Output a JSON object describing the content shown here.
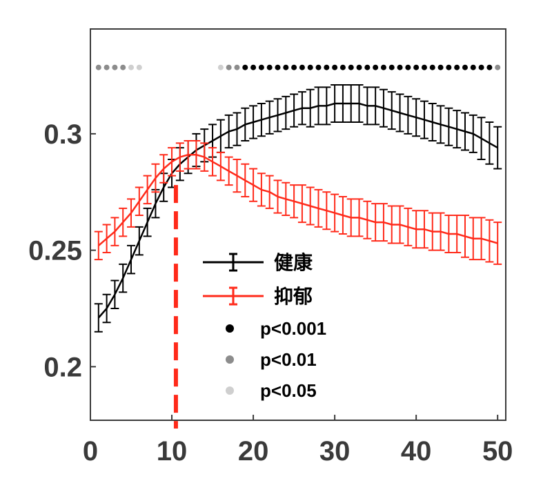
{
  "chart_data": {
    "type": "line",
    "title": "",
    "xlabel": "",
    "ylabel": "",
    "xlim": [
      0,
      51
    ],
    "ylim": [
      0.177,
      0.345
    ],
    "x_ticks": [
      {
        "value": 0,
        "label": "0"
      },
      {
        "value": 10,
        "label": "10"
      },
      {
        "value": 20,
        "label": "20"
      },
      {
        "value": 30,
        "label": "30"
      },
      {
        "value": 40,
        "label": "40"
      },
      {
        "value": 50,
        "label": "50"
      }
    ],
    "y_ticks": [
      {
        "value": 0.2,
        "label": "0.2"
      },
      {
        "value": 0.25,
        "label": "0.25"
      },
      {
        "value": 0.3,
        "label": "0.3"
      }
    ],
    "series": [
      {
        "name": "健康",
        "color": "#000000",
        "x": [
          1,
          2,
          3,
          4,
          5,
          6,
          7,
          8,
          9,
          10,
          11,
          12,
          13,
          14,
          15,
          16,
          17,
          18,
          19,
          20,
          21,
          22,
          23,
          24,
          25,
          26,
          27,
          28,
          29,
          30,
          31,
          32,
          33,
          34,
          35,
          36,
          37,
          38,
          39,
          40,
          41,
          42,
          43,
          44,
          45,
          46,
          47,
          48,
          49,
          50
        ],
        "values": [
          0.221,
          0.225,
          0.231,
          0.238,
          0.246,
          0.254,
          0.262,
          0.27,
          0.277,
          0.283,
          0.287,
          0.29,
          0.293,
          0.295,
          0.297,
          0.299,
          0.301,
          0.302,
          0.304,
          0.305,
          0.306,
          0.307,
          0.308,
          0.309,
          0.31,
          0.311,
          0.311,
          0.312,
          0.312,
          0.313,
          0.313,
          0.313,
          0.313,
          0.312,
          0.312,
          0.311,
          0.31,
          0.309,
          0.308,
          0.307,
          0.306,
          0.305,
          0.304,
          0.303,
          0.302,
          0.301,
          0.3,
          0.298,
          0.296,
          0.294
        ],
        "errors": [
          0.006,
          0.006,
          0.006,
          0.006,
          0.006,
          0.006,
          0.006,
          0.006,
          0.006,
          0.006,
          0.007,
          0.007,
          0.007,
          0.007,
          0.007,
          0.007,
          0.007,
          0.007,
          0.007,
          0.007,
          0.007,
          0.007,
          0.007,
          0.007,
          0.007,
          0.007,
          0.008,
          0.008,
          0.008,
          0.008,
          0.008,
          0.008,
          0.008,
          0.008,
          0.008,
          0.008,
          0.008,
          0.008,
          0.008,
          0.008,
          0.008,
          0.008,
          0.008,
          0.008,
          0.008,
          0.008,
          0.008,
          0.009,
          0.009,
          0.009
        ]
      },
      {
        "name": "抑郁",
        "color": "#ff2a1a",
        "x": [
          1,
          2,
          3,
          4,
          5,
          6,
          7,
          8,
          9,
          10,
          11,
          12,
          13,
          14,
          15,
          16,
          17,
          18,
          19,
          20,
          21,
          22,
          23,
          24,
          25,
          26,
          27,
          28,
          29,
          30,
          31,
          32,
          33,
          34,
          35,
          36,
          37,
          38,
          39,
          40,
          41,
          42,
          43,
          44,
          45,
          46,
          47,
          48,
          49,
          50
        ],
        "values": [
          0.252,
          0.255,
          0.258,
          0.262,
          0.266,
          0.271,
          0.276,
          0.281,
          0.285,
          0.288,
          0.29,
          0.291,
          0.291,
          0.29,
          0.288,
          0.286,
          0.284,
          0.282,
          0.28,
          0.278,
          0.276,
          0.275,
          0.273,
          0.272,
          0.271,
          0.27,
          0.269,
          0.268,
          0.267,
          0.266,
          0.265,
          0.264,
          0.264,
          0.263,
          0.262,
          0.262,
          0.261,
          0.261,
          0.26,
          0.259,
          0.259,
          0.258,
          0.258,
          0.257,
          0.257,
          0.256,
          0.255,
          0.255,
          0.254,
          0.253
        ],
        "errors": [
          0.006,
          0.006,
          0.006,
          0.006,
          0.006,
          0.006,
          0.006,
          0.006,
          0.006,
          0.006,
          0.006,
          0.006,
          0.006,
          0.006,
          0.006,
          0.006,
          0.006,
          0.007,
          0.007,
          0.007,
          0.007,
          0.007,
          0.007,
          0.007,
          0.007,
          0.008,
          0.008,
          0.008,
          0.008,
          0.008,
          0.008,
          0.008,
          0.008,
          0.008,
          0.008,
          0.008,
          0.008,
          0.008,
          0.008,
          0.008,
          0.008,
          0.008,
          0.008,
          0.008,
          0.008,
          0.009,
          0.009,
          0.009,
          0.009,
          0.009
        ]
      }
    ],
    "significance": {
      "y_value": 0.3285,
      "points": [
        {
          "x": 1,
          "level": "p<0.01"
        },
        {
          "x": 2,
          "level": "p<0.01"
        },
        {
          "x": 3,
          "level": "p<0.01"
        },
        {
          "x": 4,
          "level": "p<0.01"
        },
        {
          "x": 5,
          "level": "p<0.05"
        },
        {
          "x": 6,
          "level": "p<0.05"
        },
        {
          "x": 16,
          "level": "p<0.05"
        },
        {
          "x": 17,
          "level": "p<0.01"
        },
        {
          "x": 18,
          "level": "p<0.01"
        },
        {
          "x": 19,
          "level": "p<0.001"
        },
        {
          "x": 20,
          "level": "p<0.001"
        },
        {
          "x": 21,
          "level": "p<0.001"
        },
        {
          "x": 22,
          "level": "p<0.001"
        },
        {
          "x": 23,
          "level": "p<0.001"
        },
        {
          "x": 24,
          "level": "p<0.001"
        },
        {
          "x": 25,
          "level": "p<0.001"
        },
        {
          "x": 26,
          "level": "p<0.001"
        },
        {
          "x": 27,
          "level": "p<0.001"
        },
        {
          "x": 28,
          "level": "p<0.001"
        },
        {
          "x": 29,
          "level": "p<0.001"
        },
        {
          "x": 30,
          "level": "p<0.001"
        },
        {
          "x": 31,
          "level": "p<0.001"
        },
        {
          "x": 32,
          "level": "p<0.001"
        },
        {
          "x": 33,
          "level": "p<0.001"
        },
        {
          "x": 34,
          "level": "p<0.001"
        },
        {
          "x": 35,
          "level": "p<0.001"
        },
        {
          "x": 36,
          "level": "p<0.001"
        },
        {
          "x": 37,
          "level": "p<0.001"
        },
        {
          "x": 38,
          "level": "p<0.001"
        },
        {
          "x": 39,
          "level": "p<0.001"
        },
        {
          "x": 40,
          "level": "p<0.001"
        },
        {
          "x": 41,
          "level": "p<0.001"
        },
        {
          "x": 42,
          "level": "p<0.001"
        },
        {
          "x": 43,
          "level": "p<0.001"
        },
        {
          "x": 44,
          "level": "p<0.001"
        },
        {
          "x": 45,
          "level": "p<0.001"
        },
        {
          "x": 46,
          "level": "p<0.001"
        },
        {
          "x": 47,
          "level": "p<0.001"
        },
        {
          "x": 48,
          "level": "p<0.001"
        },
        {
          "x": 49,
          "level": "p<0.001"
        },
        {
          "x": 50,
          "level": "p<0.01"
        }
      ],
      "level_colors": {
        "p<0.001": "#000000",
        "p<0.01": "#8c8c8c",
        "p<0.05": "#cfcfcf"
      }
    },
    "reference_line": {
      "x": 10.5,
      "color": "#ff2a1a",
      "style": "dashed"
    },
    "legend": {
      "placement": "center-right",
      "entries": [
        {
          "label": "健康",
          "kind": "errorbar",
          "color": "#000000"
        },
        {
          "label": "抑郁",
          "kind": "errorbar",
          "color": "#ff2a1a"
        },
        {
          "label": "p<0.001",
          "kind": "dot",
          "color": "#000000"
        },
        {
          "label": "p<0.01",
          "kind": "dot",
          "color": "#8c8c8c"
        },
        {
          "label": "p<0.05",
          "kind": "dot",
          "color": "#cfcfcf"
        }
      ]
    }
  }
}
